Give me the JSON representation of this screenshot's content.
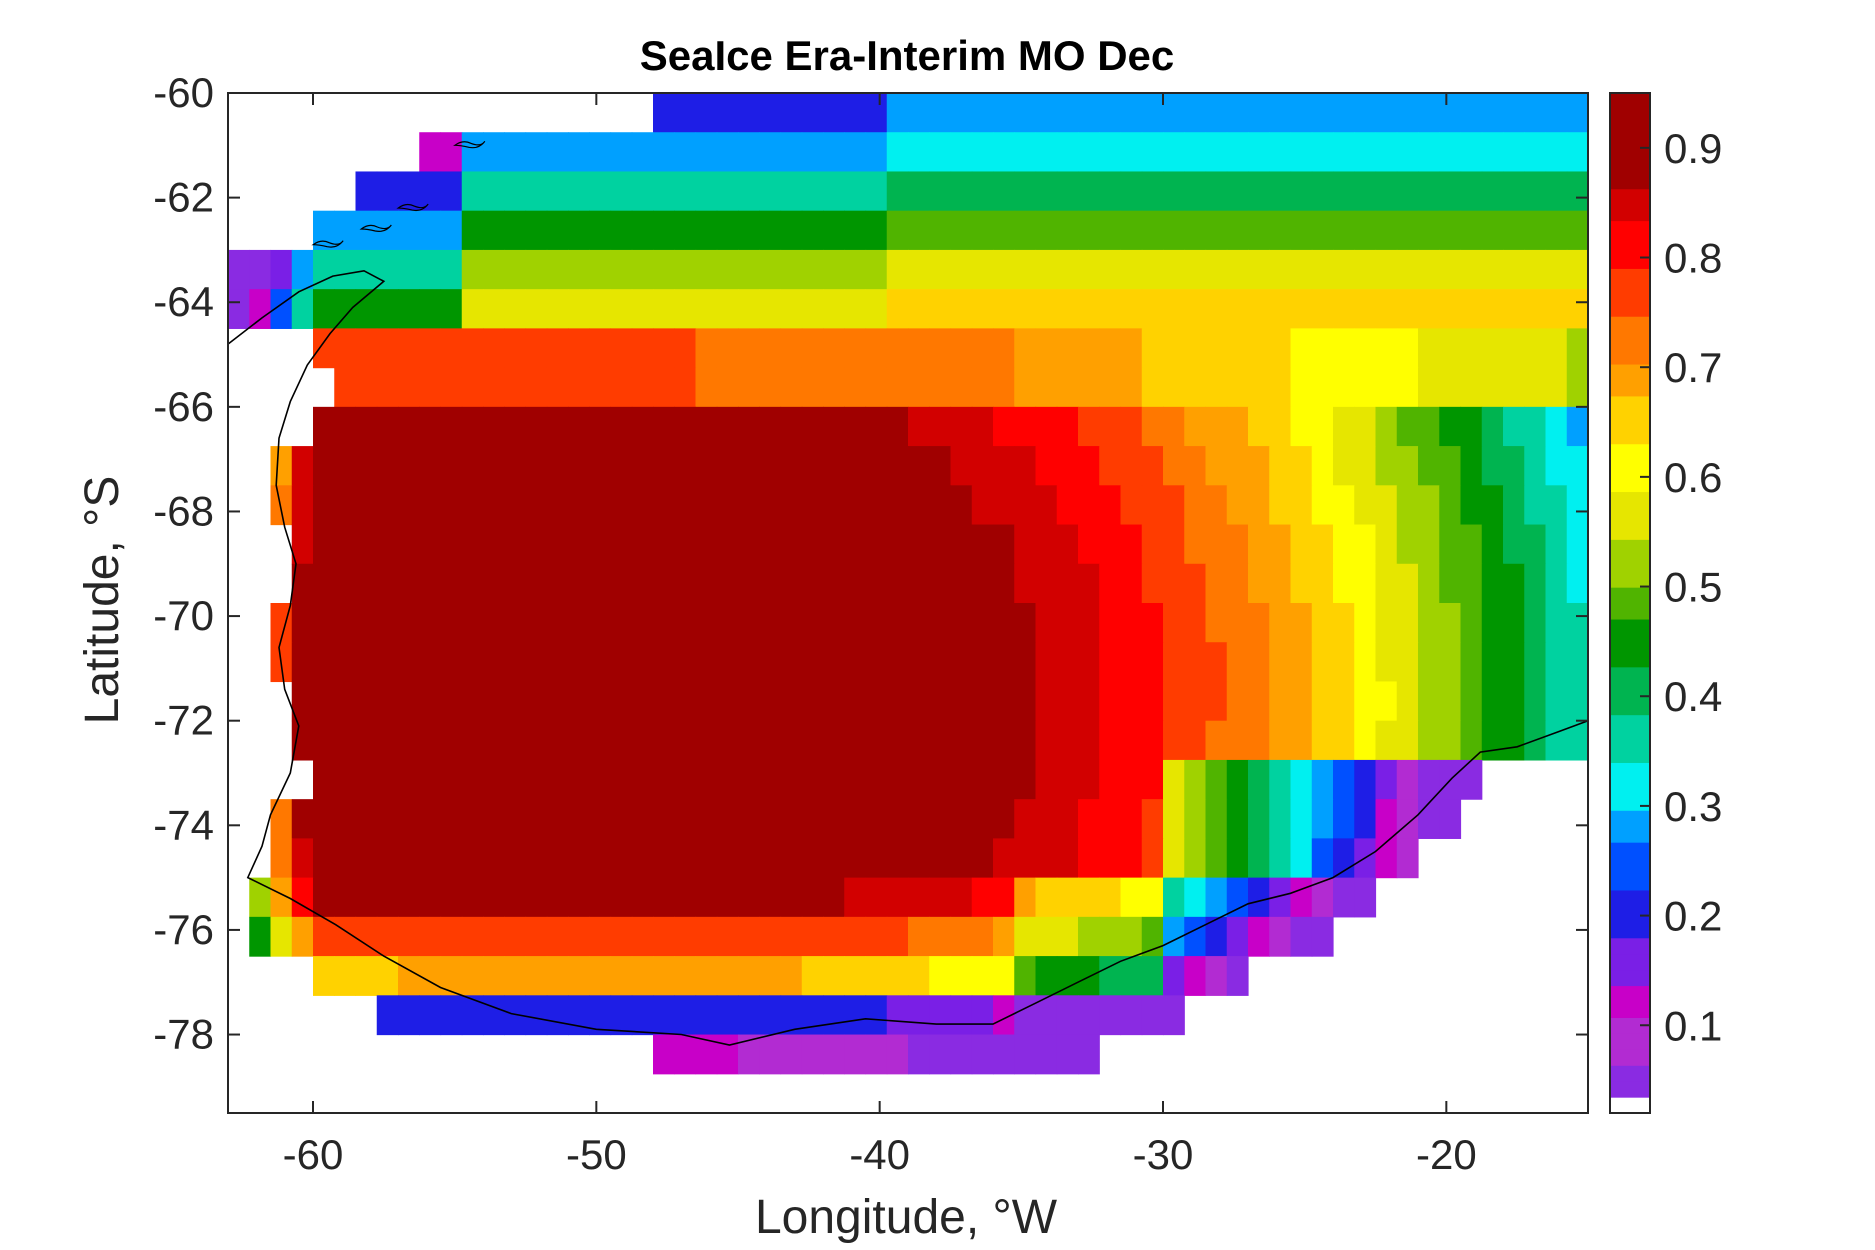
{
  "chart_data": {
    "type": "heatmap",
    "title": "SeaIce Era-Interim MO Dec",
    "xlabel": "Longitude, °W",
    "ylabel": "Latitude, °S",
    "xlim": [
      -63,
      -15
    ],
    "ylim": [
      -79.5,
      -60
    ],
    "xticks": [
      -60,
      -50,
      -40,
      -30,
      -20
    ],
    "yticks": [
      -60,
      -62,
      -64,
      -66,
      -68,
      -70,
      -72,
      -74,
      -76,
      -78
    ],
    "colorbar": {
      "clim": [
        0.02,
        0.95
      ],
      "ticks": [
        0.1,
        0.2,
        0.3,
        0.4,
        0.5,
        0.6,
        0.7,
        0.8,
        0.9
      ],
      "colormap": [
        "#ffffff",
        "#8a2be2",
        "#b22bd2",
        "#c800c8",
        "#7a1fe6",
        "#1e1ee6",
        "#0050ff",
        "#00a0ff",
        "#00f0f0",
        "#00d2a0",
        "#00b450",
        "#009600",
        "#50b400",
        "#a0d200",
        "#e6e600",
        "#ffff00",
        "#ffd200",
        "#ffa000",
        "#ff7800",
        "#ff3c00",
        "#ff0000",
        "#d20000",
        "#a00000",
        "#800000"
      ]
    },
    "grid": {
      "lon_start": -63.0,
      "lon_step": 0.75,
      "lat_start": -60.0,
      "lat_step": -0.75,
      "rows": [
        {
          "lat": -60.0,
          "lon_from": -48.0,
          "lon_to": -15.0,
          "values": "a:0.18,b:0.2,c:0.25,d:0.32,e:0.3"
        },
        {
          "lat": -60.75,
          "lon_from": -56.25,
          "lon_to": -15.0
        },
        {
          "lat": -61.5,
          "lon_from": -58.5,
          "lon_to": -15.0
        },
        {
          "lat": -62.25,
          "lon_from": -60.0,
          "lon_to": -15.0
        },
        {
          "lat": -63.0,
          "lon_from": -63.0,
          "lon_to": -15.0
        },
        {
          "lat": -63.75,
          "lon_from": -63.0,
          "lon_to": -15.0
        },
        {
          "lat": -64.5,
          "lon_from": -60.0,
          "lon_to": -15.0
        },
        {
          "lat": -65.25,
          "lon_from": -59.25,
          "lon_to": -15.0
        },
        {
          "lat": -66.0,
          "lon_from": -60.0,
          "lon_to": -15.0
        },
        {
          "lat": -66.75,
          "lon_from": -61.5,
          "lon_to": -15.0
        },
        {
          "lat": -67.5,
          "lon_from": -61.5,
          "lon_to": -15.0
        },
        {
          "lat": -68.25,
          "lon_from": -60.75,
          "lon_to": -15.0
        },
        {
          "lat": -69.0,
          "lon_from": -60.75,
          "lon_to": -15.0
        },
        {
          "lat": -69.75,
          "lon_from": -61.5,
          "lon_to": -15.0
        },
        {
          "lat": -70.5,
          "lon_from": -61.5,
          "lon_to": -15.0
        },
        {
          "lat": -71.25,
          "lon_from": -60.75,
          "lon_to": -15.0
        },
        {
          "lat": -72.0,
          "lon_from": -60.75,
          "lon_to": -15.0
        },
        {
          "lat": -72.75,
          "lon_from": -60.0,
          "lon_to": -18.75
        },
        {
          "lat": -73.5,
          "lon_from": -61.5,
          "lon_to": -19.5
        },
        {
          "lat": -74.25,
          "lon_from": -61.5,
          "lon_to": -21.0
        },
        {
          "lat": -75.0,
          "lon_from": -62.25,
          "lon_to": -22.5
        },
        {
          "lat": -75.75,
          "lon_from": -62.25,
          "lon_to": -24.0
        },
        {
          "lat": -76.5,
          "lon_from": -60.0,
          "lon_to": -27.0
        },
        {
          "lat": -77.25,
          "lon_from": -57.75,
          "lon_to": -29.25
        },
        {
          "lat": -78.0,
          "lon_from": -48.0,
          "lon_to": -32.25
        }
      ]
    }
  }
}
